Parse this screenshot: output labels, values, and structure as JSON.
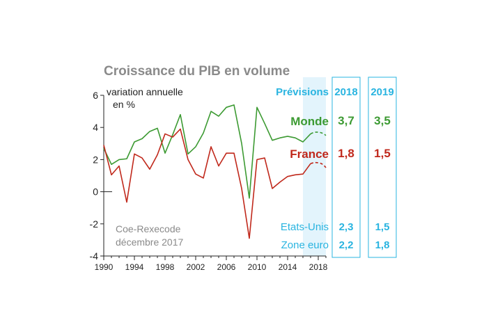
{
  "colors": {
    "monde": "#3c9a32",
    "france": "#c0281b",
    "cyan": "#29b4e0",
    "title": "#8a8a8a",
    "forecast_band": "#e3f4fc",
    "axis": "#222222",
    "source": "#8a8a8a"
  },
  "chart_data": {
    "type": "line",
    "title": "Croissance du PIB en volume",
    "ylabel": "variation annuelle\n en %",
    "xlim": [
      1990,
      2019
    ],
    "ylim": [
      -4,
      6
    ],
    "yticks": [
      -4,
      -2,
      0,
      2,
      4,
      6
    ],
    "xticks": [
      1990,
      1994,
      1998,
      2002,
      2006,
      2010,
      2014,
      2018
    ],
    "forecast_region": [
      2016,
      2019
    ],
    "series": [
      {
        "name": "Monde",
        "color_key": "monde",
        "x": [
          1990,
          1991,
          1992,
          1993,
          1994,
          1995,
          1996,
          1997,
          1998,
          1999,
          2000,
          2001,
          2002,
          2003,
          2004,
          2005,
          2006,
          2007,
          2008,
          2009,
          2010,
          2011,
          2012,
          2013,
          2014,
          2015,
          2016,
          2017
        ],
        "values": [
          2.7,
          1.7,
          2.0,
          2.05,
          3.1,
          3.3,
          3.75,
          3.95,
          2.4,
          3.55,
          4.8,
          2.35,
          2.8,
          3.65,
          5.0,
          4.7,
          5.25,
          5.4,
          3.0,
          -0.4,
          5.25,
          4.25,
          3.2,
          3.35,
          3.45,
          3.35,
          3.1,
          3.6
        ],
        "forecast_x": [
          2017,
          2018,
          2019
        ],
        "forecast_values": [
          3.6,
          3.7,
          3.5
        ]
      },
      {
        "name": "France",
        "color_key": "france",
        "x": [
          1990,
          1991,
          1992,
          1993,
          1994,
          1995,
          1996,
          1997,
          1998,
          1999,
          2000,
          2001,
          2002,
          2003,
          2004,
          2005,
          2006,
          2007,
          2008,
          2009,
          2010,
          2011,
          2012,
          2013,
          2014,
          2015,
          2016,
          2017
        ],
        "values": [
          2.9,
          1.05,
          1.6,
          -0.65,
          2.35,
          2.1,
          1.4,
          2.3,
          3.6,
          3.4,
          3.9,
          2.0,
          1.1,
          0.85,
          2.8,
          1.6,
          2.4,
          2.4,
          0.2,
          -2.9,
          2.0,
          2.1,
          0.2,
          0.6,
          0.95,
          1.05,
          1.1,
          1.75
        ],
        "forecast_x": [
          2017,
          2018,
          2019
        ],
        "forecast_values": [
          1.75,
          1.8,
          1.5
        ]
      }
    ]
  },
  "header": {
    "title": "Croissance du PIB en volume",
    "ylabel_line1": "variation annuelle",
    "ylabel_line2": "en %",
    "previsions_label": "Prévisions",
    "year_2018": "2018",
    "year_2019": "2019"
  },
  "forecast_table": {
    "rows": [
      {
        "label": "Monde",
        "v2018": "3,7",
        "v2019": "3,5"
      },
      {
        "label": "France",
        "v2018": "1,8",
        "v2019": "1,5"
      },
      {
        "label": "Etats-Unis",
        "v2018": "2,3",
        "v2019": "1,5"
      },
      {
        "label": "Zone euro",
        "v2018": "2,2",
        "v2019": "1,8"
      }
    ]
  },
  "source": {
    "line1": "Coe-Rexecode",
    "line2": "décembre 2017"
  }
}
